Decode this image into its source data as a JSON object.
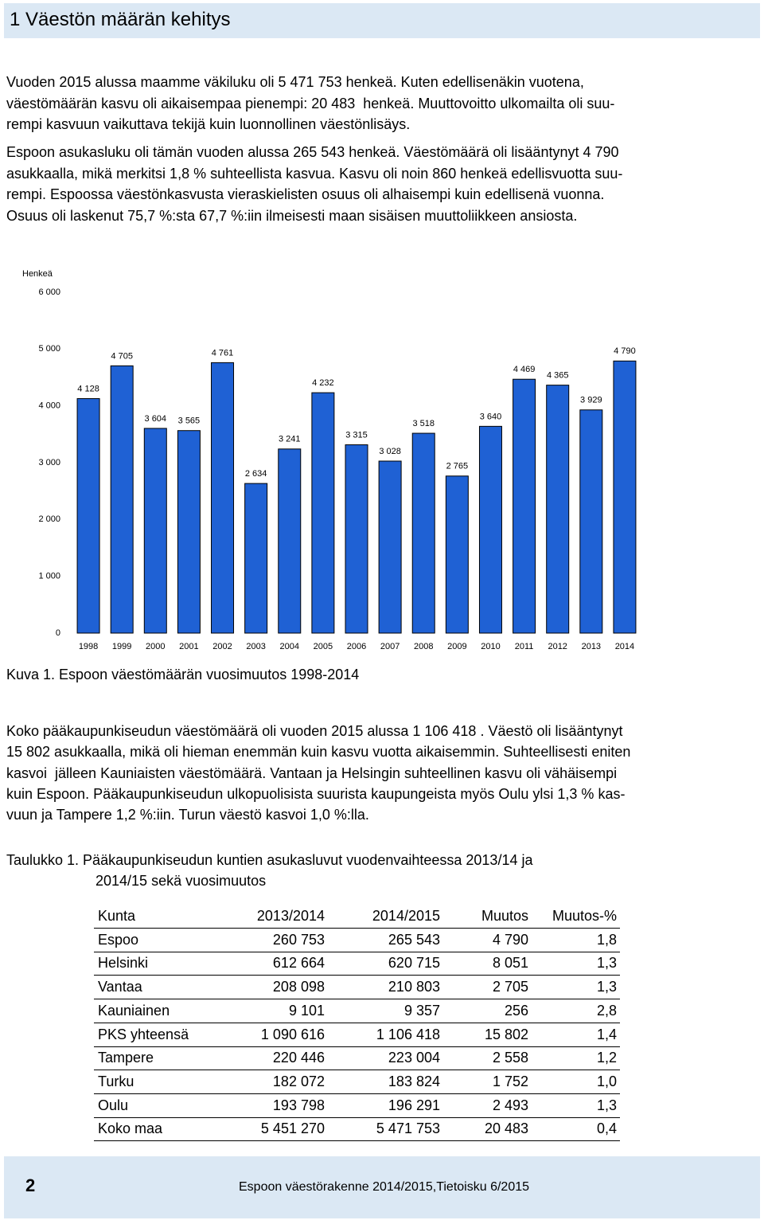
{
  "header": {
    "title": "1 Väestön määrän kehitys"
  },
  "intro": {
    "paragraphs": [
      [
        "Vuoden 2015 alussa maamme väkiluku oli 5 471 753 henkeä. Kuten edellisenäkin vuotena,",
        "väestömäärän kasvu oli aikaisempaa pienempi: 20 483  henkeä. Muuttovoitto ulkomailta oli suu-",
        "rempi kasvuun vaikuttava tekijä kuin luonnollinen väestönlisäys."
      ],
      [
        "Espoon asukasluku oli tämän vuoden alussa 265 543 henkeä. Väestömäärä oli lisääntynyt 4 790",
        "asukkaalla, mikä merkitsi 1,8 % suhteellista kasvua. Kasvu oli noin 860 henkeä edellisvuotta suu-",
        "rempi. Espoossa väestönkasvusta vieraskielisten osuus oli alhaisempi kuin edellisenä vuonna.",
        "Osuus oli laskenut 75,7 %:sta 67,7 %:iin ilmeisesti maan sisäisen muuttoliikkeen ansiosta."
      ]
    ]
  },
  "chart_data": {
    "type": "bar",
    "y_label": "Henkeä",
    "color": "#1f61d4",
    "grid": false,
    "categories": [
      "1998",
      "1999",
      "2000",
      "2001",
      "2002",
      "2003",
      "2004",
      "2005",
      "2006",
      "2007",
      "2008",
      "2009",
      "2010",
      "2011",
      "2012",
      "2013",
      "2014"
    ],
    "values": [
      4128,
      4705,
      3604,
      3565,
      4761,
      2634,
      3241,
      4232,
      3315,
      3028,
      3518,
      2765,
      3640,
      4469,
      4365,
      3929,
      4790
    ],
    "value_labels": [
      "4 128",
      "4 705",
      "3 604",
      "3 565",
      "4 761",
      "2 634",
      "3 241",
      "4 232",
      "3 315",
      "3 028",
      "3 518",
      "2 765",
      "3 640",
      "4 469",
      "4 365",
      "3 929",
      "4 790"
    ],
    "ylim": [
      0,
      6000
    ],
    "yticks": [
      0,
      {
        "value": 1000,
        "label": "1 000"
      },
      {
        "value": 2000,
        "label": "2 000"
      },
      {
        "value": 3000,
        "label": "3 000"
      },
      {
        "value": 4000,
        "label": "4 000"
      },
      {
        "value": 5000,
        "label": "5 000"
      },
      {
        "value": 6000,
        "label": "6 000"
      }
    ]
  },
  "figure": {
    "caption": "Kuva 1. Espoon väestömäärän vuosimuutos 1998-2014"
  },
  "body": {
    "lines": [
      "Koko pääkaupunkiseudun väestömäärä oli vuoden 2015 alussa 1 106 418 . Väestö oli lisääntynyt",
      "15 802 asukkaalla, mikä oli hieman enemmän kuin kasvu vuotta aikaisemmin. Suhteellisesti eniten",
      "kasvoi  jälleen Kauniaisten väestömäärä. Vantaan ja Helsingin suhteellinen kasvu oli vähäisempi",
      "kuin Espoon. Pääkaupunkiseudun ulkopuolisista suurista kaupungeista myös Oulu ylsi 1,3 % kas-",
      "vuun ja Tampere 1,2 %:iin. Turun väestö kasvoi 1,0 %:lla."
    ]
  },
  "table": {
    "caption": [
      "Taulukko 1. Pääkaupunkiseudun kuntien asukasluvut vuodenvaihteessa 2013/14 ja",
      "2014/15 sekä vuosimuutos"
    ],
    "header": [
      "Kunta",
      "2013/2014",
      "2014/2015",
      "Muutos",
      "Muutos-%"
    ],
    "rows": [
      [
        "Espoo",
        "260 753",
        "265 543",
        "4 790",
        "1,8"
      ],
      [
        "Helsinki",
        "612 664",
        "620 715",
        "8 051",
        "1,3"
      ],
      [
        "Vantaa",
        "208 098",
        "210 803",
        "2 705",
        "1,3"
      ],
      [
        "Kauniainen",
        "9 101",
        "9 357",
        "256",
        "2,8"
      ],
      [
        "PKS yhteensä",
        "1 090 616",
        "1 106 418",
        "15 802",
        "1,4"
      ],
      [
        "Tampere",
        "220 446",
        "223 004",
        "2 558",
        "1,2"
      ],
      [
        "Turku",
        "182 072",
        "183 824",
        "1 752",
        "1,0"
      ],
      [
        "Oulu",
        "193 798",
        "196 291",
        "2 493",
        "1,3"
      ],
      [
        "Koko maa",
        "5 451 270",
        "5 471 753",
        "20 483",
        "0,4"
      ]
    ]
  },
  "footer": {
    "page": "2",
    "text": "Espoon väestörakenne 2014/2015,Tietoisku 6/2015"
  }
}
